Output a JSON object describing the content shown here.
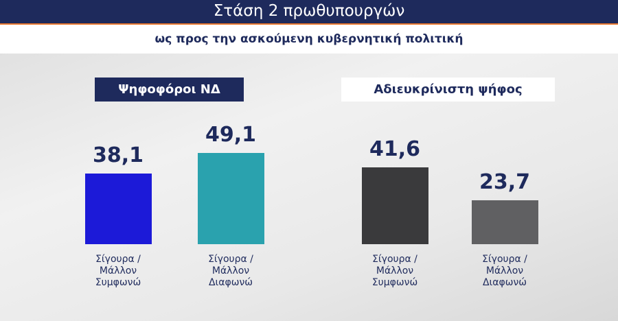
{
  "header": {
    "title": "Στάση 2 πρωθυπουργών",
    "subtitle": "ως προς την ασκούμενη κυβερνητική πολιτική"
  },
  "chart_data": [
    {
      "type": "bar",
      "title": "Ψηφοφόροι ΝΔ",
      "categories": [
        "Σίγουρα /Μάλλον Συμφωνώ",
        "Σίγουρα /Μάλλον Διαφωνώ"
      ],
      "values": [
        38.1,
        49.1
      ],
      "value_labels": [
        "38,1",
        "49,1"
      ],
      "colors": [
        "#1c1ad8",
        "#2aa2ae"
      ]
    },
    {
      "type": "bar",
      "title": "Αδιευκρίνιστη ψήφος",
      "categories": [
        "Σίγουρα /Μάλλον Συμφωνώ",
        "Σίγουρα /Μάλλον Διαφωνώ"
      ],
      "values": [
        41.6,
        23.7
      ],
      "value_labels": [
        "41,6",
        "23,7"
      ],
      "colors": [
        "#3a3a3c",
        "#606062"
      ]
    }
  ]
}
